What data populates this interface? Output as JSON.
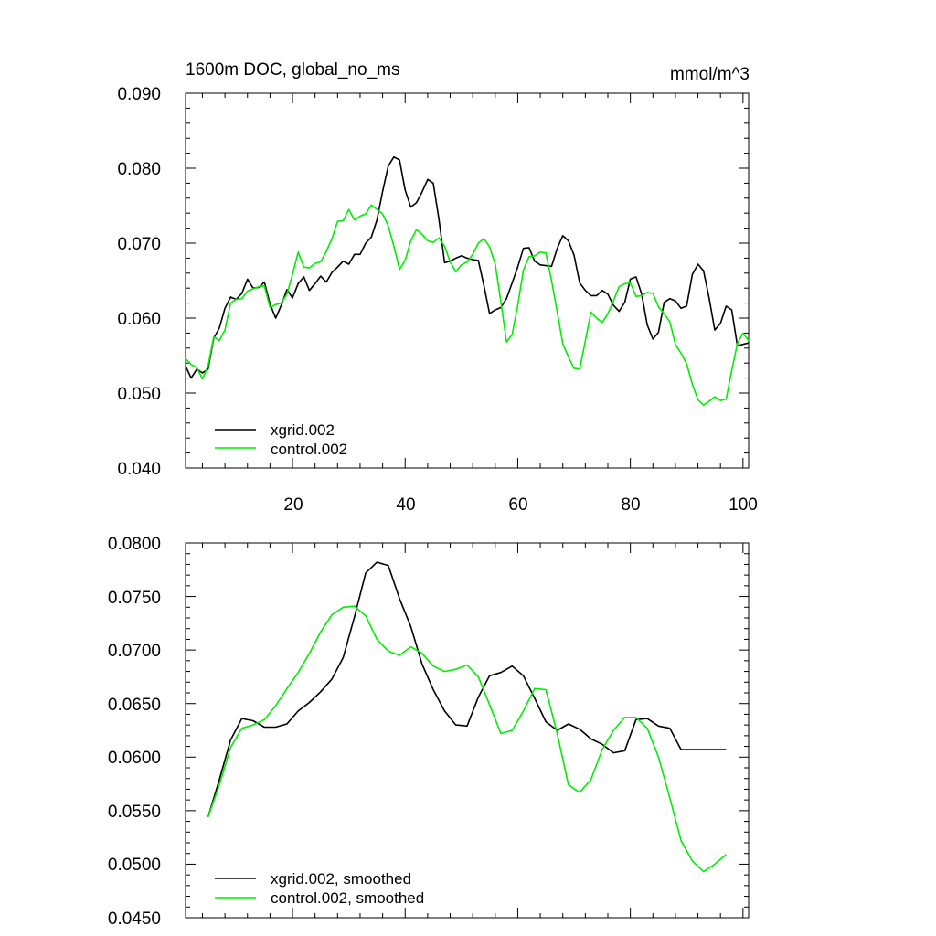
{
  "chart_data": [
    {
      "type": "line",
      "title": "1600m DOC, global_no_ms",
      "units": "mmol/m^3",
      "xlim": [
        1,
        101
      ],
      "ylim": [
        0.04,
        0.09
      ],
      "xticks": [
        "20",
        "40",
        "60",
        "80",
        "100"
      ],
      "yticks": [
        "0.040",
        "0.050",
        "0.060",
        "0.070",
        "0.080",
        "0.090"
      ],
      "legend_position": "bottom-left",
      "series": [
        {
          "name": "xgrid.002",
          "color": "#000000",
          "x": [
            1,
            2,
            3,
            4,
            5,
            6,
            7,
            8,
            9,
            10,
            11,
            12,
            13,
            14,
            15,
            16,
            17,
            18,
            19,
            20,
            21,
            22,
            23,
            24,
            25,
            26,
            27,
            28,
            29,
            30,
            31,
            32,
            33,
            34,
            35,
            36,
            37,
            38,
            39,
            40,
            41,
            42,
            43,
            44,
            45,
            46,
            47,
            48,
            49,
            50,
            51,
            52,
            53,
            54,
            55,
            56,
            57,
            58,
            59,
            60,
            61,
            62,
            63,
            64,
            65,
            66,
            67,
            68,
            69,
            70,
            71,
            72,
            73,
            74,
            75,
            76,
            77,
            78,
            79,
            80,
            81,
            82,
            83,
            84,
            85,
            86,
            87,
            88,
            89,
            90,
            91,
            92,
            93,
            94,
            95,
            96,
            97,
            98,
            99,
            100,
            101
          ],
          "values": [
            0.0536,
            0.052,
            0.0532,
            0.0527,
            0.0532,
            0.0573,
            0.0587,
            0.0613,
            0.0628,
            0.0625,
            0.0633,
            0.0652,
            0.064,
            0.0641,
            0.0648,
            0.0619,
            0.06,
            0.0617,
            0.0638,
            0.0627,
            0.0646,
            0.0655,
            0.0637,
            0.0646,
            0.0656,
            0.0648,
            0.0661,
            0.0668,
            0.0676,
            0.0672,
            0.0685,
            0.0685,
            0.07,
            0.0708,
            0.0731,
            0.0769,
            0.0803,
            0.0815,
            0.0811,
            0.0771,
            0.0748,
            0.0754,
            0.0768,
            0.0785,
            0.078,
            0.0732,
            0.0674,
            0.0676,
            0.068,
            0.0683,
            0.068,
            0.0678,
            0.0677,
            0.0643,
            0.0606,
            0.0611,
            0.0614,
            0.0626,
            0.0647,
            0.0668,
            0.0693,
            0.0694,
            0.0676,
            0.0671,
            0.067,
            0.0669,
            0.0693,
            0.071,
            0.0703,
            0.0684,
            0.0647,
            0.0637,
            0.063,
            0.063,
            0.0637,
            0.0632,
            0.0617,
            0.0609,
            0.0621,
            0.0652,
            0.0655,
            0.0632,
            0.0591,
            0.0572,
            0.0581,
            0.0621,
            0.0626,
            0.0623,
            0.0613,
            0.0616,
            0.0658,
            0.0672,
            0.0663,
            0.0626,
            0.0584,
            0.0593,
            0.0616,
            0.0611,
            0.0563,
            0.0565,
            0.0567
          ]
        },
        {
          "name": "control.002",
          "color": "#00ee00",
          "x": [
            1,
            2,
            3,
            4,
            5,
            6,
            7,
            8,
            9,
            10,
            11,
            12,
            13,
            14,
            15,
            16,
            17,
            18,
            19,
            20,
            21,
            22,
            23,
            24,
            25,
            26,
            27,
            28,
            29,
            30,
            31,
            32,
            33,
            34,
            35,
            36,
            37,
            38,
            39,
            40,
            41,
            42,
            43,
            44,
            45,
            46,
            47,
            48,
            49,
            50,
            51,
            52,
            53,
            54,
            55,
            56,
            57,
            58,
            59,
            60,
            61,
            62,
            63,
            64,
            65,
            66,
            67,
            68,
            69,
            70,
            71,
            72,
            73,
            74,
            75,
            76,
            77,
            78,
            79,
            80,
            81,
            82,
            83,
            84,
            85,
            86,
            87,
            88,
            89,
            90,
            91,
            92,
            93,
            94,
            95,
            96,
            97,
            98,
            99,
            100,
            101
          ],
          "values": [
            0.0546,
            0.0538,
            0.0534,
            0.0519,
            0.0536,
            0.0575,
            0.057,
            0.0584,
            0.062,
            0.0625,
            0.0626,
            0.0636,
            0.0639,
            0.0642,
            0.0643,
            0.0614,
            0.0618,
            0.062,
            0.0632,
            0.0658,
            0.0688,
            0.0668,
            0.0667,
            0.0673,
            0.0675,
            0.0689,
            0.0706,
            0.0729,
            0.073,
            0.0745,
            0.0731,
            0.0736,
            0.0739,
            0.0751,
            0.0745,
            0.0739,
            0.0723,
            0.0696,
            0.0665,
            0.0677,
            0.0703,
            0.0718,
            0.0712,
            0.0703,
            0.0701,
            0.0707,
            0.0696,
            0.0675,
            0.0662,
            0.0671,
            0.0675,
            0.0685,
            0.07,
            0.0706,
            0.0695,
            0.0672,
            0.0622,
            0.0568,
            0.0578,
            0.0617,
            0.0664,
            0.0682,
            0.0683,
            0.0688,
            0.0687,
            0.065,
            0.0608,
            0.0566,
            0.0548,
            0.0533,
            0.0532,
            0.057,
            0.0608,
            0.06,
            0.0594,
            0.0606,
            0.0623,
            0.0642,
            0.0646,
            0.0647,
            0.0629,
            0.063,
            0.0634,
            0.0633,
            0.0615,
            0.0606,
            0.0595,
            0.0565,
            0.0553,
            0.0539,
            0.0512,
            0.0491,
            0.0484,
            0.0489,
            0.0495,
            0.049,
            0.0492,
            0.053,
            0.0566,
            0.058,
            0.057
          ]
        }
      ]
    },
    {
      "type": "line",
      "title": "",
      "xlim": [
        1,
        101
      ],
      "ylim": [
        0.045,
        0.08
      ],
      "yticks": [
        "0.0450",
        "0.0500",
        "0.0550",
        "0.0600",
        "0.0650",
        "0.0700",
        "0.0750",
        "0.0800"
      ],
      "legend_position": "bottom-left",
      "series": [
        {
          "name": "xgrid.002, smoothed",
          "color": "#000000",
          "x": [
            5,
            7,
            9,
            11,
            13,
            15,
            17,
            19,
            21,
            23,
            25,
            27,
            29,
            31,
            33,
            35,
            37,
            39,
            41,
            43,
            45,
            47,
            49,
            51,
            53,
            55,
            57,
            59,
            61,
            63,
            65,
            67,
            69,
            71,
            73,
            75,
            77,
            79,
            81,
            83,
            85,
            87,
            89,
            91,
            93,
            95,
            97
          ],
          "values": [
            0.0544,
            0.0579,
            0.0616,
            0.0636,
            0.0634,
            0.0628,
            0.0628,
            0.0631,
            0.0643,
            0.0651,
            0.0661,
            0.0673,
            0.0693,
            0.0731,
            0.0772,
            0.0782,
            0.0779,
            0.0748,
            0.0722,
            0.0687,
            0.0663,
            0.0643,
            0.063,
            0.0629,
            0.0656,
            0.0676,
            0.0679,
            0.0685,
            0.0676,
            0.0655,
            0.0633,
            0.0625,
            0.0631,
            0.0626,
            0.0617,
            0.0612,
            0.0604,
            0.0606,
            0.0635,
            0.0636,
            0.0629,
            0.0627,
            0.0607,
            0.0607,
            0.0607,
            0.0607,
            0.0607
          ]
        },
        {
          "name": "control.002, smoothed",
          "color": "#00ee00",
          "x": [
            5,
            7,
            9,
            11,
            13,
            15,
            17,
            19,
            21,
            23,
            25,
            27,
            29,
            31,
            33,
            35,
            37,
            39,
            41,
            43,
            45,
            47,
            49,
            51,
            53,
            55,
            57,
            59,
            61,
            63,
            65,
            67,
            69,
            71,
            73,
            75,
            77,
            79,
            81,
            83,
            85,
            87,
            89,
            91,
            93,
            95,
            97
          ],
          "values": [
            0.0544,
            0.0574,
            0.0609,
            0.0627,
            0.063,
            0.0635,
            0.0648,
            0.0664,
            0.0679,
            0.0697,
            0.0717,
            0.0733,
            0.074,
            0.0741,
            0.0732,
            0.071,
            0.0699,
            0.0695,
            0.0703,
            0.0697,
            0.0685,
            0.068,
            0.0682,
            0.0686,
            0.0675,
            0.0649,
            0.0622,
            0.0625,
            0.0643,
            0.0664,
            0.0663,
            0.0622,
            0.0574,
            0.0567,
            0.0579,
            0.0607,
            0.0625,
            0.0637,
            0.0637,
            0.0627,
            0.06,
            0.0562,
            0.0522,
            0.0503,
            0.0493,
            0.05,
            0.0509
          ]
        }
      ]
    }
  ]
}
